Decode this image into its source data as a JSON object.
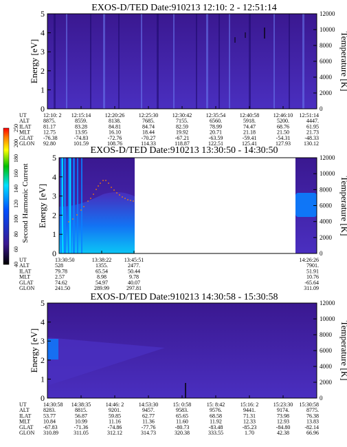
{
  "colors": {
    "background_low": "#3a1890",
    "background_mid": "#4a2fc0",
    "high_intensity": "#0a80ff",
    "stripe_dark": "#1c0a6a",
    "stripe_light": "#6a7bf0",
    "axis": "#000000",
    "colorbar_red": "#ff0000",
    "colorbar_orange": "#ff8000",
    "colorbar_yellow": "#ffff00",
    "colorbar_green": "#00c000",
    "colorbar_cyan": "#00e0ff",
    "colorbar_blue": "#0050ff",
    "colorbar_violet": "#3a1890",
    "colorbar_black": "#000000"
  },
  "colorbar": {
    "label": "Second Harmonic Current",
    "ticks": [
      "40",
      "60",
      "80",
      "100",
      "120",
      "140",
      "160",
      "180",
      "200",
      "250"
    ]
  },
  "chart_data": [
    {
      "type": "heatmap",
      "title": "EXOS-D/TED   Date:910213  12:10: 2 - 12:51:14",
      "ylabel": "Energy [eV]",
      "ylabel_right": "Temperature [K]",
      "ylim": [
        0,
        5
      ],
      "yticks": [
        "0",
        "1",
        "2",
        "3",
        "4",
        "5"
      ],
      "ylim_right": [
        0,
        12000
      ],
      "yticks_right": [
        "0",
        "2000",
        "4000",
        "6000",
        "8000",
        "10000",
        "12000"
      ],
      "orbit_table": {
        "row_labels": [
          "UT",
          "ALT",
          "ILAT",
          "MLT",
          "GLAT",
          "GLON"
        ],
        "columns": [
          [
            "12:10: 2",
            "8875.",
            "81.17",
            "12.75",
            "-76.38",
            "92.80"
          ],
          [
            "12:15:14",
            "8559.",
            "83.28",
            "13.95",
            "-74.83",
            "101.59"
          ],
          [
            "12:20:26",
            "8138.",
            "84.81",
            "16.10",
            "-72.76",
            "108.76"
          ],
          [
            "12:25:30",
            "7685.",
            "84.74",
            "18.44",
            "-70.27",
            "114.33"
          ],
          [
            "12:30:42",
            "7155.",
            "82.59",
            "19.92",
            "-67.21",
            "118.87"
          ],
          [
            "12:35:54",
            "6560.",
            "78.99",
            "20.71",
            "-63.59",
            "122.51"
          ],
          [
            "12:40:58",
            "5918.",
            "74.47",
            "21.18",
            "-59.41",
            "125.41"
          ],
          [
            "12:46:10",
            "5200.",
            "68.76",
            "21.50",
            "-54.31",
            "127.93"
          ],
          [
            "12:51:14",
            "4447.",
            "61.95",
            "21.73",
            "-48.33",
            "130.12"
          ]
        ]
      }
    },
    {
      "type": "heatmap",
      "title": "EXOS-D/TED   Date:910213  13:30:50 - 14:30:50",
      "ylabel": "Energy [eV]",
      "ylabel_right": "Temperature [K]",
      "ylim": [
        0,
        5
      ],
      "yticks": [
        "0",
        "1",
        "2",
        "3",
        "4",
        "5"
      ],
      "ylim_right": [
        0,
        12000
      ],
      "yticks_right": [
        "0",
        "2000",
        "4000",
        "6000",
        "8000",
        "10000",
        "12000"
      ],
      "orbit_table": {
        "row_labels": [
          "UT",
          "ALT",
          "ILAT",
          "MLT",
          "GLAT",
          "GLON"
        ],
        "columns": [
          [
            "13:30:50",
            "528",
            "79.78",
            "2.57",
            "74.62",
            "241.50"
          ],
          [
            "13:38:22",
            "1355.",
            "65.54",
            "8.98",
            "54.97",
            "289.99"
          ],
          [
            "13:45:51",
            "2477.",
            "50.44",
            "9.78",
            "40.07",
            "297.81"
          ],
          [
            "14:26:26",
            "7901.",
            "51.91",
            "10.76",
            "-65.64",
            "311.09"
          ]
        ]
      }
    },
    {
      "type": "heatmap",
      "title": "EXOS-D/TED   Date:910213  14:30:58 - 15:30:58",
      "ylabel": "Energy [eV]",
      "ylabel_right": "Temperature [K]",
      "ylim": [
        0,
        5
      ],
      "yticks": [
        "0",
        "1",
        "2",
        "3",
        "4",
        "5"
      ],
      "ylim_right": [
        0,
        12000
      ],
      "yticks_right": [
        "0",
        "2000",
        "4000",
        "6000",
        "8000",
        "10000",
        "12000"
      ],
      "orbit_table": {
        "row_labels": [
          "UT",
          "ALT",
          "ILAT",
          "MLT",
          "GLAT",
          "GLON"
        ],
        "columns": [
          [
            "14:30:58",
            "8283.",
            "53.77",
            "10.84",
            "-67.83",
            "310.89"
          ],
          [
            "14:38:35",
            "8815.",
            "56.87",
            "10.99",
            "-71.36",
            "311.05"
          ],
          [
            "14:46: 2",
            "9201.",
            "59.85",
            "11.16",
            "-74.86",
            "312.12"
          ],
          [
            "14:53:30",
            "9457.",
            "62.77",
            "11.36",
            "-77.76",
            "314.73"
          ],
          [
            "15: 0:58",
            "9583.",
            "65.65",
            "11.60",
            "-80.73",
            "320.38"
          ],
          [
            "15: 8:42",
            "9576.",
            "68.58",
            "11.92",
            "-83.48",
            "333.55"
          ],
          [
            "15:16: 2",
            "9441.",
            "71.31",
            "12.33",
            "-85.23",
            "1.70"
          ],
          [
            "15:23:30",
            "9174.",
            "73.98",
            "12.93",
            "-84.80",
            "42.38"
          ],
          [
            "15:30:58",
            "8775.",
            "76.38",
            "13.83",
            "-82.14",
            "66.96"
          ]
        ]
      }
    }
  ]
}
